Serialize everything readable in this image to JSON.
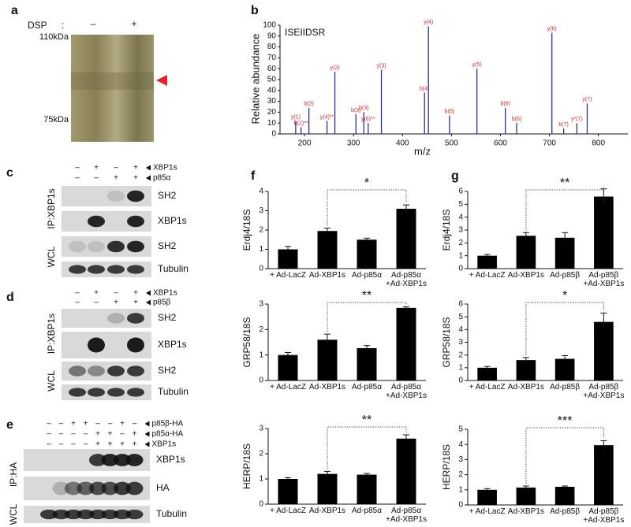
{
  "panel_labels": [
    "a",
    "b",
    "c",
    "d",
    "e",
    "f",
    "g"
  ],
  "gel": {
    "condition": "DSP",
    "separator": ":",
    "lanes": [
      "–",
      "+"
    ],
    "markers": [
      "110kDa",
      "75kDa"
    ]
  },
  "blots": [
    {
      "treatments": [
        {
          "name": "XBP1s",
          "signs": [
            "–",
            "+",
            "–",
            "+"
          ]
        },
        {
          "name": "p85α",
          "signs": [
            "–",
            "–",
            "+",
            "+"
          ]
        }
      ],
      "groups": [
        {
          "name": "IP:XBP1s",
          "rows": [
            "SH2",
            "XBP1s"
          ]
        },
        {
          "name": "WCL",
          "rows": [
            "SH2",
            "Tubulin"
          ]
        }
      ]
    },
    {
      "treatments": [
        {
          "name": "XBP1s",
          "signs": [
            "–",
            "+",
            "–",
            "+"
          ]
        },
        {
          "name": "p85β",
          "signs": [
            "–",
            "–",
            "+",
            "+"
          ]
        }
      ],
      "groups": [
        {
          "name": "IP:XBP1s",
          "rows": [
            "SH2",
            "XBP1s"
          ]
        },
        {
          "name": "WCL",
          "rows": [
            "SH2",
            "Tubulin"
          ]
        }
      ]
    },
    {
      "treatments": [
        {
          "name": "p85β-HA",
          "signs": [
            "–",
            "–",
            "+",
            "+",
            "–",
            "–",
            "+",
            "–"
          ]
        },
        {
          "name": "p85α-HA",
          "signs": [
            "–",
            "–",
            "–",
            "–",
            "+",
            "+",
            "–",
            "+"
          ]
        },
        {
          "name": "XBP1s",
          "signs": [
            "–",
            "–",
            "–",
            "–",
            "+",
            "+",
            "+",
            "+"
          ]
        }
      ],
      "groups": [
        {
          "name": "IP:HA",
          "rows": [
            "XBP1s",
            "HA"
          ]
        },
        {
          "name": "WCL",
          "rows": [
            "Tubulin"
          ]
        }
      ]
    }
  ],
  "chart_data": [
    {
      "type": "stem",
      "annotation": "ISEIIDSR",
      "xlabel": "m/z",
      "ylabel": "Relative abundance",
      "color": "#2b2f9e",
      "label_color": "#d62728",
      "x": [
        182,
        193,
        209,
        246,
        262,
        305,
        321,
        330,
        357,
        445,
        453,
        496,
        552,
        610,
        633,
        705,
        729,
        756,
        777
      ],
      "values": [
        12,
        6,
        24,
        12,
        57,
        18,
        20,
        10,
        59,
        38,
        99,
        17,
        60,
        24,
        10,
        93,
        5,
        10,
        28
      ],
      "peak_labels": [
        "y(1)",
        "b(2)**",
        "b(2)",
        "y(4)**",
        "y(2)",
        "b(3)",
        "b(3)",
        "y(6)**",
        "y(3)",
        "b(4)",
        "y(4)",
        "b(5)",
        "y(5)",
        "b(6)",
        "b(6)",
        "y(6)",
        "b(7)",
        "y*(7)",
        "y(7)"
      ],
      "xlim": [
        150,
        860
      ],
      "xticks": [
        200,
        300,
        400,
        500,
        600,
        700,
        800
      ],
      "ylim": [
        0,
        100
      ],
      "yticks": [
        0,
        10,
        20,
        30,
        40,
        50,
        60,
        70,
        80,
        90,
        100
      ]
    },
    {
      "type": "bar",
      "ylabel": "Erdj4/18S",
      "color": "#000000",
      "categories": [
        "+ Ad-LacZ",
        "Ad-XBP1s",
        "Ad-p85α",
        "Ad-p85α\n+Ad-XBP1s"
      ],
      "values": [
        1.0,
        1.95,
        1.5,
        3.1
      ],
      "errors": [
        0.15,
        0.15,
        0.08,
        0.2
      ],
      "significance": "*",
      "ylim": [
        0,
        4
      ],
      "yticks": [
        0,
        1,
        2,
        3,
        4
      ]
    },
    {
      "type": "bar",
      "ylabel": "GRP58/18S",
      "color": "#000000",
      "categories": [
        "+ Ad-LacZ",
        "Ad-XBP1s",
        "Ad-p85α",
        "Ad-p85α\n+Ad-XBP1s"
      ],
      "values": [
        1.0,
        1.6,
        1.27,
        2.85
      ],
      "errors": [
        0.1,
        0.22,
        0.1,
        0.04
      ],
      "significance": "**",
      "ylim": [
        0,
        3
      ],
      "yticks": [
        0,
        1,
        2,
        3
      ]
    },
    {
      "type": "bar",
      "ylabel": "HERP/18S",
      "color": "#000000",
      "categories": [
        "+ Ad-LacZ",
        "Ad-XBP1s",
        "Ad-p85α",
        "Ad-p85α\n+Ad-XBP1s"
      ],
      "values": [
        1.0,
        1.2,
        1.17,
        2.6
      ],
      "errors": [
        0.05,
        0.1,
        0.05,
        0.15
      ],
      "significance": "**",
      "ylim": [
        0,
        3
      ],
      "yticks": [
        0,
        1,
        2,
        3
      ]
    },
    {
      "type": "bar",
      "ylabel": "Erdj4/18S",
      "color": "#000000",
      "categories": [
        "+ Ad-LacZ",
        "Ad-XBP1s",
        "Ad-p85β",
        "Ad-p85β\n+Ad-XBP1s"
      ],
      "values": [
        1.0,
        2.55,
        2.4,
        5.6
      ],
      "errors": [
        0.1,
        0.25,
        0.4,
        0.6
      ],
      "significance": "**",
      "ylim": [
        0,
        6
      ],
      "yticks": [
        0,
        1,
        2,
        3,
        4,
        5,
        6
      ]
    },
    {
      "type": "bar",
      "ylabel": "GRP58/18S",
      "color": "#000000",
      "categories": [
        "+ Ad-LacZ",
        "Ad-XBP1s",
        "Ad-p85β",
        "Ad-p85β\n+Ad-XBP1s"
      ],
      "values": [
        1.0,
        1.6,
        1.7,
        4.6
      ],
      "errors": [
        0.1,
        0.2,
        0.25,
        0.7
      ],
      "significance": "*",
      "ylim": [
        0,
        6
      ],
      "yticks": [
        0,
        1,
        2,
        3,
        4,
        5,
        6
      ]
    },
    {
      "type": "bar",
      "ylabel": "HERP/18S",
      "color": "#000000",
      "categories": [
        "+ Ad-LacZ",
        "Ad-XBP1s",
        "Ad-p85β",
        "Ad-p85β\n+Ad-XBP1s"
      ],
      "values": [
        1.0,
        1.15,
        1.2,
        3.95
      ],
      "errors": [
        0.08,
        0.1,
        0.05,
        0.3
      ],
      "significance": "***",
      "ylim": [
        0,
        5
      ],
      "yticks": [
        0,
        1,
        2,
        3,
        4,
        5
      ]
    }
  ]
}
